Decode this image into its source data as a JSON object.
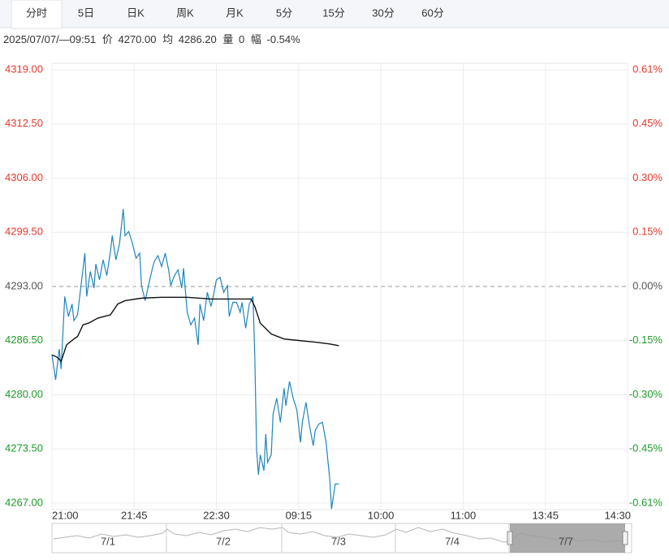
{
  "tabs": [
    "分时",
    "5日",
    "日K",
    "周K",
    "月K",
    "5分",
    "15分",
    "30分",
    "60分"
  ],
  "active_tab": 0,
  "info": {
    "time": "2025/07/07/—09:51",
    "price": "4270.00",
    "avg": "4286.20",
    "volume_label": "量",
    "volume": "0",
    "range_label": "幅",
    "range": "-0.54%"
  },
  "chart_data": {
    "type": "line",
    "reference": 4293,
    "up_color": "#e03a2e",
    "down_color": "#1e9a2a",
    "flat_color": "#555555",
    "grid": true,
    "xlim": [
      0,
      315
    ],
    "xticks": [
      {
        "value": 0,
        "label": "21:00"
      },
      {
        "value": 45,
        "label": "21:45"
      },
      {
        "value": 90,
        "label": "22:30"
      },
      {
        "value": 135,
        "label": "09:15"
      },
      {
        "value": 180,
        "label": "10:00"
      },
      {
        "value": 225,
        "label": "11:00"
      },
      {
        "value": 270,
        "label": "13:45"
      },
      {
        "value": 315,
        "label": "14:30"
      }
    ],
    "ylim": [
      4267,
      4319
    ],
    "yticks": [
      {
        "value": 4319,
        "label": "4319.00"
      },
      {
        "value": 4312.5,
        "label": "4312.50"
      },
      {
        "value": 4306,
        "label": "4306.00"
      },
      {
        "value": 4299.5,
        "label": "4299.50"
      },
      {
        "value": 4293,
        "label": "4293.00"
      },
      {
        "value": 4286.5,
        "label": "4286.50"
      },
      {
        "value": 4280,
        "label": "4280.00"
      },
      {
        "value": 4273.5,
        "label": "4273.50"
      },
      {
        "value": 4267,
        "label": "4267.00"
      }
    ],
    "y2lim": [
      -0.6056,
      0.6056
    ],
    "y2ticks": [
      {
        "value": 0.6056,
        "label": "0.61%"
      },
      {
        "value": 0.4542,
        "label": "0.45%"
      },
      {
        "value": 0.3028,
        "label": "0.30%"
      },
      {
        "value": 0.1514,
        "label": "0.15%"
      },
      {
        "value": 0,
        "label": "0.00%"
      },
      {
        "value": -0.1514,
        "label": "-0.15%"
      },
      {
        "value": -0.3028,
        "label": "-0.30%"
      },
      {
        "value": -0.4542,
        "label": "-0.45%"
      },
      {
        "value": -0.6056,
        "label": "-0.61%"
      }
    ],
    "series": [
      {
        "name": "价",
        "color": "#1f86b8",
        "x": [
          0,
          2,
          4,
          5,
          7,
          9,
          11,
          12,
          14,
          16,
          18,
          19,
          21,
          23,
          24,
          26,
          28,
          30,
          32,
          33,
          35,
          37,
          39,
          40,
          42,
          44,
          46,
          48,
          49,
          51,
          53,
          55,
          56,
          58,
          60,
          62,
          64,
          65,
          67,
          69,
          71,
          72,
          74,
          76,
          78,
          80,
          81,
          83,
          85,
          87,
          88,
          90,
          92,
          94,
          96,
          97,
          99,
          101,
          103,
          104,
          106,
          108,
          110,
          111,
          112,
          113,
          114,
          116,
          117,
          118,
          120,
          121,
          123,
          125,
          127,
          128,
          130,
          132,
          134,
          136,
          137,
          139,
          141,
          143,
          144,
          146,
          148,
          150,
          152,
          153,
          155,
          157
        ],
        "values": [
          4284.8,
          4281.8,
          4285.5,
          4283.1,
          4291.8,
          4289.4,
          4290.9,
          4288.9,
          4289.6,
          4293.3,
          4297.0,
          4291.8,
          4294.8,
          4292.8,
          4295.7,
          4293.8,
          4296.2,
          4294.3,
          4297.2,
          4299.1,
          4296.2,
          4298.2,
          4302.3,
          4299.1,
          4299.6,
          4298.2,
          4296.4,
          4297.0,
          4293.1,
          4291.3,
          4293.3,
          4295.2,
          4296.0,
          4296.7,
          4295.4,
          4297.0,
          4294.8,
          4293.1,
          4294.3,
          4295.0,
          4292.8,
          4295.2,
          4289.9,
          4288.4,
          4289.2,
          4286.0,
          4290.9,
          4288.9,
          4292.3,
          4290.6,
          4291.5,
          4293.8,
          4294.1,
          4292.3,
          4293.1,
          4289.4,
          4291.1,
          4291.1,
          4289.9,
          4291.1,
          4288.0,
          4290.9,
          4291.8,
          4284.5,
          4273.3,
          4270.4,
          4272.8,
          4270.9,
          4275.3,
          4271.9,
          4272.8,
          4277.7,
          4279.6,
          4276.7,
          4280.8,
          4278.7,
          4281.6,
          4279.6,
          4278.2,
          4274.3,
          4276.7,
          4279.1,
          4276.2,
          4273.9,
          4275.7,
          4276.5,
          4276.7,
          4274.3,
          4269.9,
          4266.3,
          4269.3,
          4269.3
        ]
      },
      {
        "name": "均",
        "color": "#111111",
        "x": [
          0,
          3,
          5,
          8,
          12,
          14,
          17,
          20,
          25,
          32,
          36,
          40,
          49,
          60,
          74,
          87,
          100,
          109,
          111,
          114,
          120,
          127,
          136,
          145,
          152,
          157
        ],
        "values": [
          4284.8,
          4284.5,
          4284.0,
          4286.0,
          4286.7,
          4287.0,
          4288.4,
          4288.6,
          4289.2,
          4289.6,
          4290.9,
          4291.3,
          4291.6,
          4291.7,
          4291.7,
          4291.5,
          4291.5,
          4291.5,
          4290.6,
          4288.6,
          4287.3,
          4286.7,
          4286.5,
          4286.3,
          4286.1,
          4285.9
        ]
      }
    ],
    "navigator": {
      "labels": [
        "7/1",
        "7/2",
        "7/3",
        "7/4",
        "7/7"
      ]
    }
  }
}
